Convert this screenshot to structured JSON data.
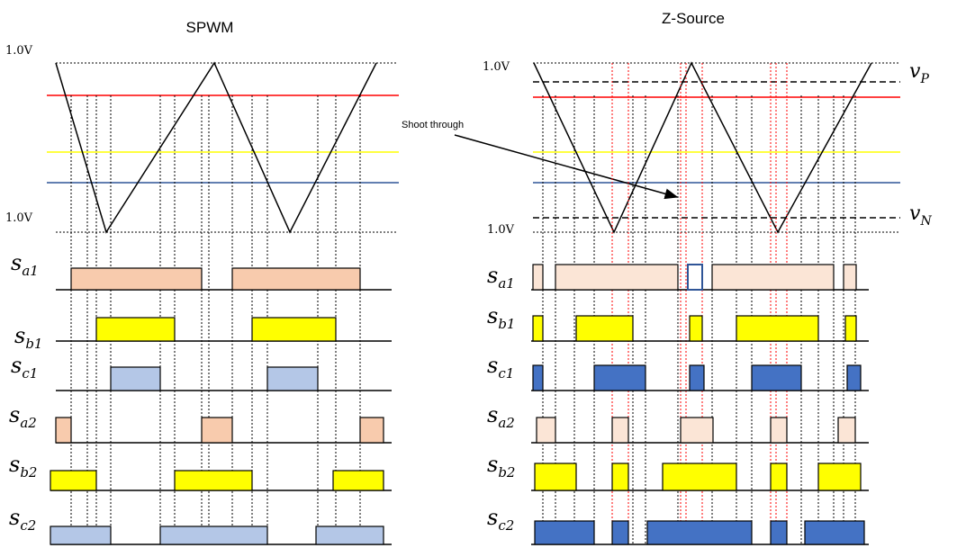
{
  "panels": {
    "spwm": {
      "title": "SPWM"
    },
    "zsource": {
      "title": "Z-Source"
    }
  },
  "voltage_labels": {
    "top": "1.0V",
    "bottom": "1.0V"
  },
  "annotations": {
    "shoot_through": "Shoot through",
    "vp": "v",
    "vp_sub": "P",
    "vn": "v",
    "vn_sub": "N"
  },
  "signals": [
    {
      "base": "s",
      "sub": "a1"
    },
    {
      "base": "s",
      "sub": "b1"
    },
    {
      "base": "s",
      "sub": "c1"
    },
    {
      "base": "s",
      "sub": "a2"
    },
    {
      "base": "s",
      "sub": "b2"
    },
    {
      "base": "s",
      "sub": "c2"
    }
  ],
  "colors": {
    "a_pulse_spwm": "#f8cbad",
    "a_pulse_z": "#fbe5d6",
    "b_pulse": "#ffff00",
    "c_pulse_spwm": "#b4c7e7",
    "c_pulse_z": "#4472c4",
    "ref_a": "#ff0000",
    "ref_b": "#ffff00",
    "ref_c": "#2f5597",
    "shoot_line": "#ff0000"
  }
}
